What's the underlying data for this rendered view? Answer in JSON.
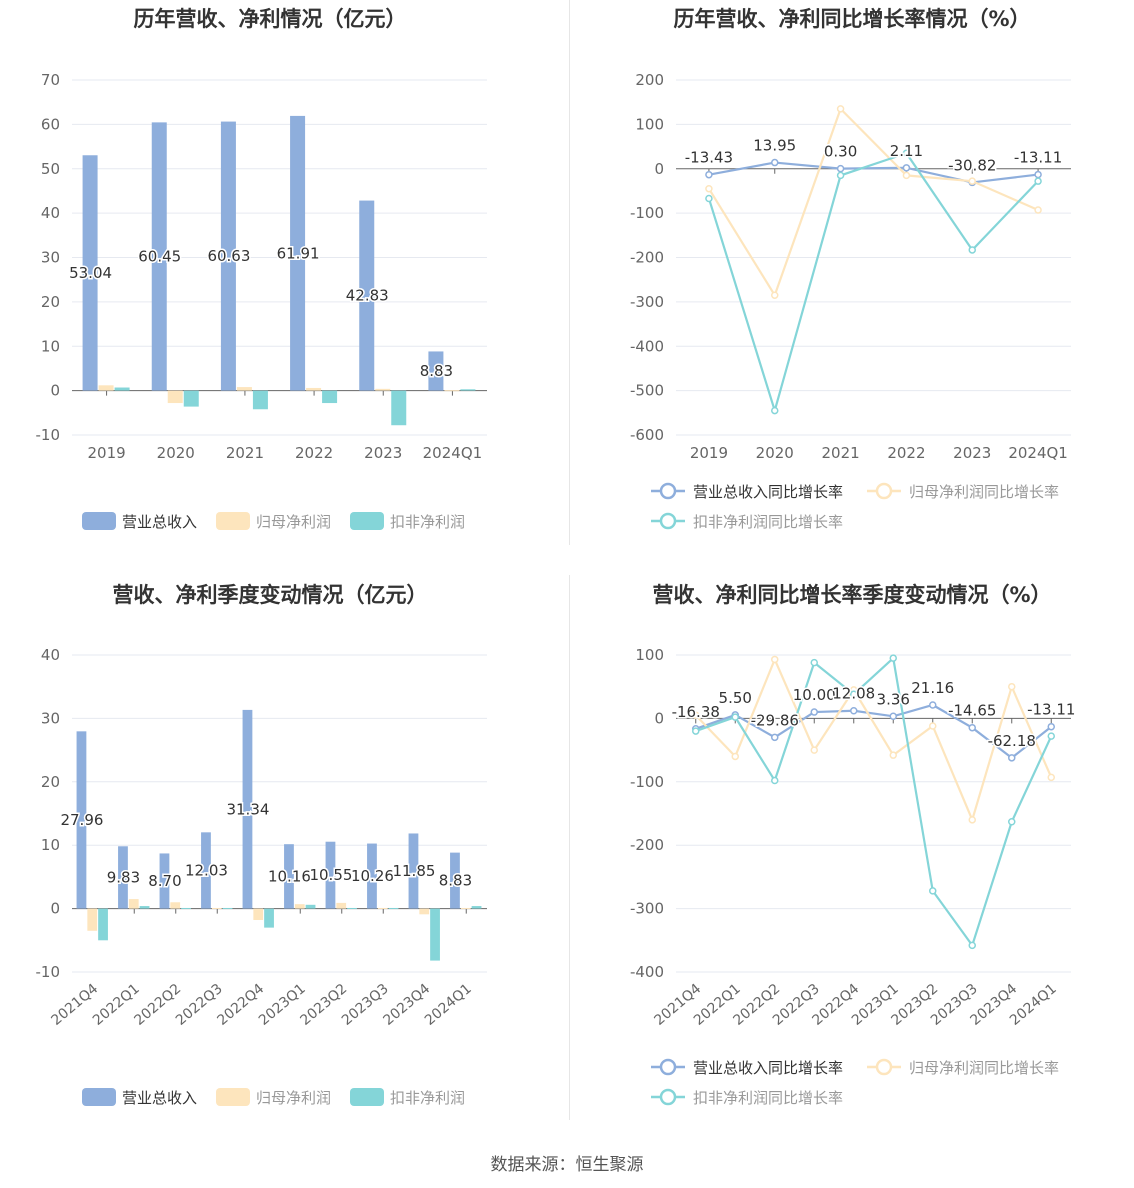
{
  "colors": {
    "revenue": "#8eaedc",
    "net_profit": "#fde5bd",
    "deducted_profit": "#84d5d8",
    "revenue_line": "#8eaedc",
    "net_profit_line": "#fde5bd",
    "deducted_profit_line": "#84d5d8",
    "axis_text": "#666666",
    "title": "#333333",
    "grid": "#e6e9f0"
  },
  "footer": "数据来源：恒生聚源",
  "chart_data": [
    {
      "id": "annual_amount",
      "type": "bar",
      "title": "历年营收、净利情况（亿元）",
      "categories": [
        "2019",
        "2020",
        "2021",
        "2022",
        "2023",
        "2024Q1"
      ],
      "ylim": [
        -10,
        70
      ],
      "yticks": [
        -10,
        0,
        10,
        20,
        30,
        40,
        50,
        60,
        70
      ],
      "legend_position": "bottom",
      "series": [
        {
          "name": "营业总收入",
          "values": [
            53.04,
            60.45,
            60.63,
            61.91,
            42.83,
            8.83
          ],
          "labels": [
            "53.04",
            "60.45",
            "60.63",
            "61.91",
            "42.83",
            "8.83"
          ]
        },
        {
          "name": "归母净利润",
          "values": [
            1.2,
            -2.8,
            0.8,
            0.6,
            0.4,
            0.1
          ]
        },
        {
          "name": "扣非净利润",
          "values": [
            0.7,
            -3.6,
            -4.2,
            -2.8,
            -7.8,
            0.3
          ]
        }
      ]
    },
    {
      "id": "annual_growth",
      "type": "line",
      "title": "历年营收、净利同比增长率情况（%）",
      "categories": [
        "2019",
        "2020",
        "2021",
        "2022",
        "2023",
        "2024Q1"
      ],
      "ylim": [
        -600,
        200
      ],
      "yticks": [
        -600,
        -500,
        -400,
        -300,
        -200,
        -100,
        0,
        100,
        200
      ],
      "legend_position": "bottom",
      "series": [
        {
          "name": "营业总收入同比增长率",
          "values": [
            -13.43,
            13.95,
            0.3,
            2.11,
            -30.82,
            -13.11
          ],
          "labels": [
            "-13.43",
            "13.95",
            "0.30",
            "2.11",
            "-30.82",
            "-13.11"
          ]
        },
        {
          "name": "归母净利润同比增长率",
          "values": [
            -45,
            -285,
            135,
            -15,
            -28,
            -93
          ]
        },
        {
          "name": "扣非净利润同比增长率",
          "values": [
            -67,
            -545,
            -15,
            35,
            -183,
            -28
          ]
        }
      ]
    },
    {
      "id": "quarterly_amount",
      "type": "bar",
      "title": "营收、净利季度变动情况（亿元）",
      "categories": [
        "2021Q4",
        "2022Q1",
        "2022Q2",
        "2022Q3",
        "2022Q4",
        "2023Q1",
        "2023Q2",
        "2023Q3",
        "2023Q4",
        "2024Q1"
      ],
      "ylim": [
        -10,
        40
      ],
      "yticks": [
        -10,
        0,
        10,
        20,
        30,
        40
      ],
      "legend_position": "bottom",
      "series": [
        {
          "name": "营业总收入",
          "values": [
            27.96,
            9.83,
            8.7,
            12.03,
            31.34,
            10.16,
            10.55,
            10.26,
            11.85,
            8.83
          ],
          "labels": [
            "27.96",
            "9.83",
            "8.70",
            "12.03",
            "31.34",
            "10.16",
            "10.55",
            "10.26",
            "11.85",
            "8.83"
          ]
        },
        {
          "name": "归母净利润",
          "values": [
            -3.5,
            1.5,
            1.0,
            0.1,
            -1.8,
            0.7,
            0.9,
            0.1,
            -0.9,
            0.1
          ]
        },
        {
          "name": "扣非净利润",
          "values": [
            -5.0,
            0.4,
            0.1,
            0.1,
            -3.0,
            0.6,
            0.1,
            0.1,
            -8.2,
            0.4
          ]
        }
      ]
    },
    {
      "id": "quarterly_growth",
      "type": "line",
      "title": "营收、净利同比增长率季度变动情况（%）",
      "categories": [
        "2021Q4",
        "2022Q1",
        "2022Q2",
        "2022Q3",
        "2022Q4",
        "2023Q1",
        "2023Q2",
        "2023Q3",
        "2023Q4",
        "2024Q1"
      ],
      "ylim": [
        -400,
        100
      ],
      "yticks": [
        -400,
        -300,
        -200,
        -100,
        0,
        100
      ],
      "legend_position": "bottom",
      "series": [
        {
          "name": "营业总收入同比增长率",
          "values": [
            -16.38,
            5.5,
            -29.86,
            10.0,
            12.08,
            3.36,
            21.16,
            -14.65,
            -62.18,
            -13.11
          ],
          "labels": [
            "-16.38",
            "5.50",
            "-29.86",
            "10.00",
            "12.08",
            "3.36",
            "21.16",
            "-14.65",
            "-62.18",
            "-13.11"
          ]
        },
        {
          "name": "归母净利润同比增长率",
          "values": [
            5,
            -60,
            93,
            -50,
            45,
            -58,
            -12,
            -160,
            50,
            -93
          ]
        },
        {
          "name": "扣非净利润同比增长率",
          "values": [
            -20,
            2,
            -98,
            88,
            38,
            95,
            -272,
            -358,
            -163,
            -28
          ]
        }
      ]
    }
  ]
}
